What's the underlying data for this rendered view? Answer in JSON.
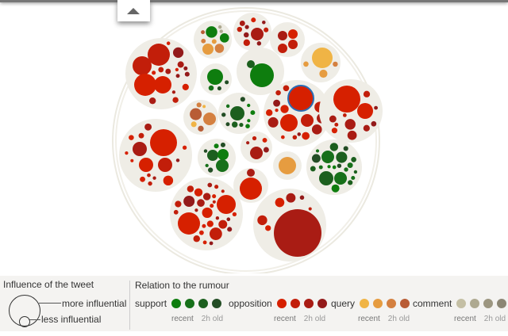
{
  "legend": {
    "influence_title": "Influence of the tweet",
    "more": "more influential",
    "less": "less influential",
    "relation_title": "Relation to the rumour",
    "recent": "recent",
    "old": "2h old",
    "categories": [
      {
        "label": "support",
        "colors": [
          "#0e7d0e",
          "#17701a",
          "#1c5f1e",
          "#234d25"
        ]
      },
      {
        "label": "opposition",
        "colors": [
          "#d62000",
          "#c21e0a",
          "#a91c14",
          "#931a1a"
        ]
      },
      {
        "label": "query",
        "colors": [
          "#f0b445",
          "#e69c40",
          "#d48040",
          "#b85c35"
        ]
      },
      {
        "label": "comment",
        "colors": [
          "#c4bfa4",
          "#aea990",
          "#9c9680",
          "#8c8674"
        ]
      }
    ]
  },
  "colors": {
    "cluster_bg": "#efede6",
    "highlight": "#2a6db5"
  }
}
